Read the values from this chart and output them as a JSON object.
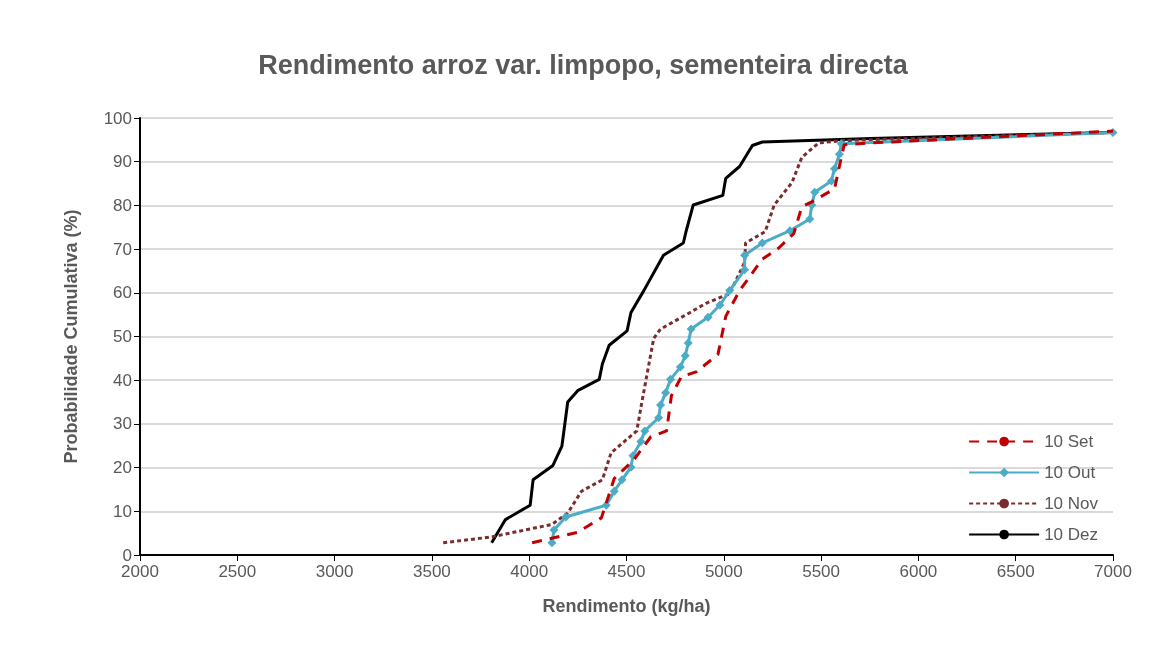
{
  "chart_data": {
    "type": "line",
    "title": "Rendimento arroz var. limpopo, sementeira directa",
    "xlabel": "Rendimento (kg/ha)",
    "ylabel": "Probabilidade Cumulativa (%)",
    "xlim": [
      2000,
      7000
    ],
    "xticks": [
      2000,
      2500,
      3000,
      3500,
      4000,
      4500,
      5000,
      5500,
      6000,
      6500,
      7000
    ],
    "ylim": [
      0,
      100
    ],
    "yticks": [
      0,
      10,
      20,
      30,
      40,
      50,
      60,
      70,
      80,
      90,
      100
    ],
    "grid": "y",
    "legend": "bottom right",
    "series": [
      {
        "name": "10 Set",
        "color": "#c00000",
        "line_style": "dashed",
        "marker": "none",
        "x": [
          4015,
          4249,
          4371,
          4437,
          4538,
          4624,
          4706,
          4731,
          4782,
          4858,
          4970,
          5010,
          5081,
          5198,
          5284,
          5360,
          5401,
          5452,
          5569,
          5604,
          5619,
          5756,
          7000
        ],
        "values": [
          2.8,
          5.2,
          8.5,
          17.5,
          21.8,
          27,
          28.4,
          36.5,
          40.8,
          41.9,
          45.9,
          54.6,
          60.5,
          67.7,
          70.3,
          73.6,
          79.7,
          80.8,
          83.8,
          91,
          93.9,
          94.3,
          97
        ]
      },
      {
        "name": "10 Out",
        "color": "#4bacc6",
        "line_style": "solid",
        "marker": "diamond",
        "x": [
          4117,
          4127,
          4188,
          4396,
          4437,
          4477,
          4523,
          4533,
          4574,
          4594,
          4665,
          4675,
          4701,
          4726,
          4777,
          4802,
          4817,
          4832,
          4919,
          4980,
          5030,
          5107,
          5107,
          5198,
          5340,
          5442,
          5452,
          5467,
          5553,
          5569,
          5594,
          5604,
          7000
        ],
        "values": [
          2.8,
          5.7,
          8.7,
          11.4,
          14.6,
          17.2,
          20.1,
          22.7,
          26,
          28.4,
          31.4,
          34.3,
          37.1,
          40.2,
          43,
          45.6,
          48.5,
          51.7,
          54.4,
          57.2,
          60.5,
          65.3,
          68.6,
          71.4,
          74.2,
          76.9,
          80.1,
          83,
          85.6,
          88.4,
          91.7,
          94.1,
          96.7
        ]
      },
      {
        "name": "10 Nov",
        "color": "#7b2c2c",
        "line_style": "dotted",
        "marker": "none",
        "x": [
          3558,
          3802,
          4117,
          4198,
          4269,
          4376,
          4421,
          4553,
          4579,
          4640,
          4675,
          4827,
          4909,
          5030,
          5107,
          5112,
          5213,
          5259,
          5350,
          5401,
          5487,
          5604,
          7000
        ],
        "values": [
          2.8,
          4.1,
          7,
          9.6,
          14.6,
          17.2,
          23.4,
          28.4,
          35,
          49.6,
          51.7,
          55.5,
          57.6,
          59.8,
          67,
          71.4,
          74,
          80.1,
          85.2,
          91,
          94.3,
          94.8,
          96.7
        ]
      },
      {
        "name": "10 Dez",
        "color": "#000000",
        "line_style": "solid",
        "marker": "none",
        "x": [
          3807,
          3878,
          4005,
          4020,
          4122,
          4168,
          4198,
          4249,
          4360,
          4376,
          4411,
          4503,
          4523,
          4589,
          4690,
          4792,
          4807,
          4843,
          4995,
          5010,
          5081,
          5147,
          5198,
          5756,
          7000
        ],
        "values": [
          2.8,
          8.1,
          11.4,
          17.2,
          20.5,
          24.9,
          35,
          37.6,
          40.2,
          43.7,
          48,
          51.3,
          55.5,
          60.5,
          68.6,
          71.4,
          74.2,
          80.1,
          82.3,
          86.2,
          88.9,
          93.7,
          94.5,
          95.3,
          96.7
        ]
      }
    ]
  }
}
